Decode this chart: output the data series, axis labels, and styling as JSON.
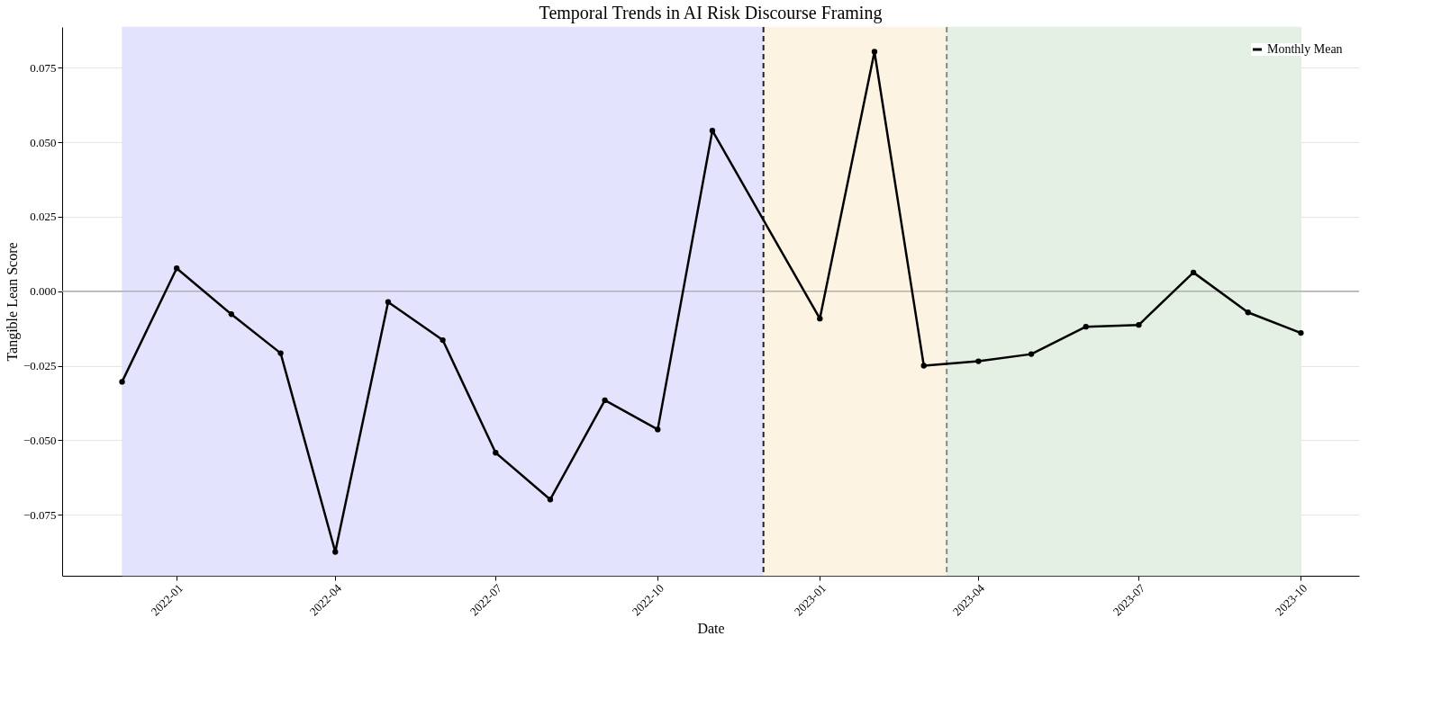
{
  "chart_data": {
    "type": "line",
    "title": "Temporal Trends in AI Risk Discourse Framing",
    "xlabel": "Date",
    "ylabel": "Tangible Lean Score",
    "x": [
      "2021-12",
      "2022-01",
      "2022-02",
      "2022-03",
      "2022-04",
      "2022-05",
      "2022-06",
      "2022-07",
      "2022-08",
      "2022-09",
      "2022-10",
      "2022-11",
      "2023-01",
      "2023-02",
      "2023-03",
      "2023-04",
      "2023-05",
      "2023-06",
      "2023-07",
      "2023-08",
      "2023-09",
      "2023-10"
    ],
    "series": [
      {
        "name": "Monthly Mean",
        "color": "#000000",
        "values": [
          -0.0304,
          0.0077,
          -0.0077,
          -0.0208,
          -0.0875,
          -0.0036,
          -0.0164,
          -0.0542,
          -0.0699,
          -0.0366,
          -0.0464,
          0.0539,
          -0.0092,
          0.0804,
          -0.025,
          -0.0235,
          -0.0211,
          -0.0119,
          -0.0113,
          0.0063,
          -0.0071,
          -0.014
        ]
      }
    ],
    "marker": "circle",
    "line_style": "solid",
    "xlim": [
      "2021-10-28",
      "2023-11-03"
    ],
    "xticks": [
      "2022-01",
      "2022-04",
      "2022-07",
      "2022-10",
      "2023-01",
      "2023-04",
      "2023-07",
      "2023-10"
    ],
    "ylim": [
      -0.0955,
      0.0887
    ],
    "yticks": [
      {
        "value": -0.075,
        "label": "−0.075"
      },
      {
        "value": -0.05,
        "label": "−0.050"
      },
      {
        "value": -0.025,
        "label": "−0.025"
      },
      {
        "value": 0,
        "label": "0.000"
      },
      {
        "value": 0.025,
        "label": "0.025"
      },
      {
        "value": 0.05,
        "label": "0.050"
      },
      {
        "value": 0.075,
        "label": "0.075"
      }
    ],
    "bands": [
      {
        "axis": "x",
        "from": "2021-12-01",
        "to": "2022-11-30",
        "color": "#e3e3fd"
      },
      {
        "axis": "x",
        "from": "2022-11-30",
        "to": "2023-03-14",
        "color": "#fdf3e3"
      },
      {
        "axis": "x",
        "from": "2023-03-14",
        "to": "2023-10-01",
        "color": "#e3f0e3"
      }
    ],
    "ref_lines": [
      {
        "axis": "y",
        "value": 0,
        "color": "#b0b0b0",
        "line_style": "solid"
      },
      {
        "axis": "x",
        "value": "2022-11-30",
        "color": "#222222",
        "line_style": "dashed"
      },
      {
        "axis": "x",
        "value": "2023-03-14",
        "color": "#888888",
        "line_style": "dashed"
      }
    ],
    "grid": true,
    "legend": "top right"
  }
}
